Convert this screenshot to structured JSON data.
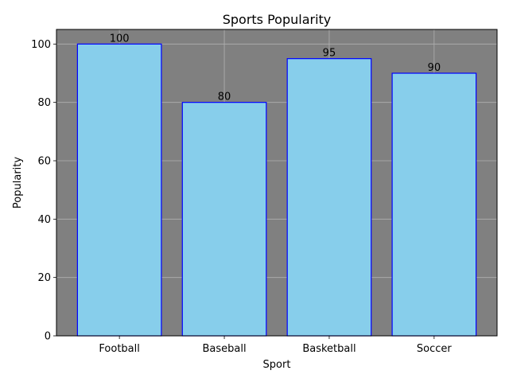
{
  "chart_data": {
    "type": "bar",
    "title": "Sports Popularity",
    "xlabel": "Sport",
    "ylabel": "Popularity",
    "categories": [
      "Football",
      "Baseball",
      "Basketball",
      "Soccer"
    ],
    "values": [
      100,
      80,
      95,
      90
    ],
    "data_labels": [
      "100",
      "80",
      "95",
      "90"
    ],
    "ylim": [
      0,
      105
    ],
    "yticks": [
      0,
      20,
      40,
      60,
      80,
      100
    ],
    "ytick_labels": [
      "0",
      "20",
      "40",
      "60",
      "80",
      "100"
    ],
    "grid": true,
    "colors": {
      "bar_fill": "#87ceeb",
      "bar_edge": "#0000ff",
      "plot_background": "#808080",
      "grid": "#b0b0b0"
    }
  }
}
